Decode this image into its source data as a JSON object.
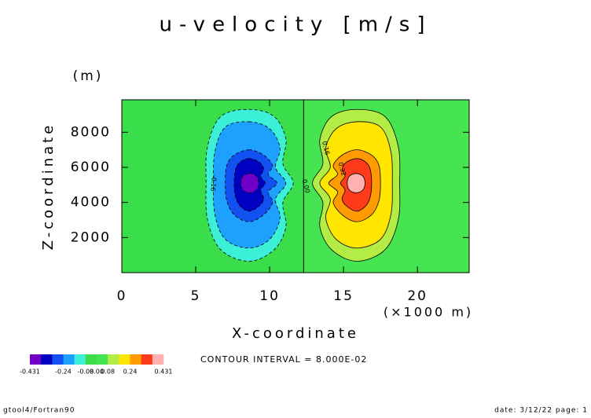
{
  "chart_data": {
    "type": "contour",
    "title": "u-velocity [m/s]",
    "y_unit": "(m)",
    "ylabel": "Z-coordinate",
    "xlabel": "X-coordinate",
    "x_unit": "(×1000 m)",
    "xlim": [
      0,
      23.5
    ],
    "ylim": [
      0,
      9850
    ],
    "xticks": [
      0,
      5,
      10,
      15,
      20
    ],
    "yticks": [
      2000,
      4000,
      6000,
      8000
    ],
    "contour_interval": "CONTOUR INTERVAL = 8.000E-02",
    "colorbar": {
      "levels": [
        -0.431,
        -0.4,
        -0.32,
        -0.24,
        -0.16,
        -0.08,
        0,
        0.08,
        0.16,
        0.24,
        0.32,
        0.4,
        0.431
      ],
      "colors": [
        "#7000c8",
        "#0000c0",
        "#1250f0",
        "#1ea0ff",
        "#3cf0d8",
        "#3ade4a",
        "#46e450",
        "#b4ec46",
        "#ffe600",
        "#ff9a00",
        "#ff3a1a",
        "#ffb0b0"
      ],
      "ticks": [
        -0.431,
        -0.24,
        -0.08,
        {
          "value": 0,
          "label": "0.00"
        },
        0.08,
        0.24,
        0.431
      ]
    },
    "contours": [
      {
        "level": -0.08,
        "x": [
          8.6,
          10.3,
          11.1,
          10.9,
          11.6,
          10.9,
          11.1,
          10.3,
          8.6,
          6.7,
          5.8,
          5.7,
          5.8,
          6.7
        ],
        "z": [
          9300,
          8900,
          7600,
          6200,
          5100,
          4000,
          2600,
          1300,
          650,
          1300,
          3000,
          5100,
          7200,
          8900
        ]
      },
      {
        "level": -0.16,
        "x": [
          8.6,
          10.0,
          10.7,
          10.4,
          11.1,
          10.4,
          10.7,
          10.0,
          8.6,
          7.0,
          6.3,
          6.2,
          6.3,
          7.0
        ],
        "z": [
          8600,
          8200,
          7100,
          6000,
          5100,
          4200,
          3100,
          1900,
          1400,
          1900,
          3300,
          5100,
          6900,
          8300
        ]
      },
      {
        "level": -0.24,
        "x": [
          8.6,
          9.6,
          10.2,
          9.9,
          10.5,
          9.9,
          10.2,
          9.6,
          8.6,
          7.6,
          7.1,
          7.0,
          7.1,
          7.6
        ],
        "z": [
          7000,
          6700,
          6100,
          5600,
          5100,
          4600,
          4000,
          3300,
          2900,
          3300,
          4100,
          5100,
          6100,
          6700
        ]
      },
      {
        "level": -0.32,
        "x": [
          8.6,
          9.3,
          9.6,
          9.4,
          9.7,
          9.4,
          9.6,
          9.3,
          8.6,
          8.0,
          7.7,
          7.6,
          7.7,
          8.0
        ],
        "z": [
          6500,
          6300,
          5900,
          5500,
          5100,
          4700,
          4200,
          3800,
          3500,
          3800,
          4300,
          5100,
          5900,
          6300
        ]
      },
      {
        "level": -0.4,
        "x": [
          8.65,
          9.1,
          9.25,
          9.1,
          8.65,
          8.2,
          8.05,
          8.2
        ],
        "z": [
          5650,
          5500,
          5100,
          4700,
          4550,
          4700,
          5100,
          5500
        ]
      },
      {
        "level": 0.08,
        "x": [
          15.9,
          14.2,
          13.4,
          13.6,
          12.9,
          13.6,
          13.4,
          14.2,
          15.9,
          17.8,
          18.7,
          18.8,
          18.7,
          17.8
        ],
        "z": [
          9300,
          8900,
          7600,
          6200,
          5100,
          4000,
          2600,
          1300,
          650,
          1300,
          3000,
          5100,
          7200,
          8900
        ]
      },
      {
        "level": 0.16,
        "x": [
          15.9,
          14.5,
          13.8,
          14.1,
          13.4,
          14.1,
          13.8,
          14.5,
          15.9,
          17.5,
          18.2,
          18.3,
          18.2,
          17.5
        ],
        "z": [
          8600,
          8200,
          7100,
          6000,
          5100,
          4200,
          3100,
          1900,
          1400,
          1900,
          3300,
          5100,
          6900,
          8300
        ]
      },
      {
        "level": 0.24,
        "x": [
          15.9,
          14.9,
          14.3,
          14.6,
          14.0,
          14.6,
          14.3,
          14.9,
          15.9,
          16.9,
          17.4,
          17.5,
          17.4,
          16.9
        ],
        "z": [
          7000,
          6700,
          6100,
          5600,
          5100,
          4600,
          4000,
          3300,
          2900,
          3300,
          4100,
          5100,
          6100,
          6700
        ]
      },
      {
        "level": 0.32,
        "x": [
          15.9,
          15.2,
          14.9,
          15.1,
          14.8,
          15.1,
          14.9,
          15.2,
          15.9,
          16.5,
          16.8,
          16.9,
          16.8,
          16.5
        ],
        "z": [
          6500,
          6300,
          5900,
          5500,
          5100,
          4700,
          4200,
          3800,
          3500,
          3800,
          4300,
          5100,
          5900,
          6300
        ]
      },
      {
        "level": 0.4,
        "x": [
          15.85,
          16.3,
          16.45,
          16.3,
          15.85,
          15.4,
          15.25,
          15.4
        ],
        "z": [
          5650,
          5500,
          5100,
          4700,
          4550,
          4700,
          5100,
          5500
        ]
      },
      {
        "level": 0,
        "x": [
          12.3,
          12.3
        ],
        "z": [
          0,
          9850
        ]
      }
    ],
    "contour_labels": [
      {
        "text": "0.00",
        "level": 0
      },
      {
        "text": "-0.16",
        "level": -0.16
      },
      {
        "text": "0.16",
        "level": 0.16
      },
      {
        "text": "0.32",
        "level": 0.32
      }
    ],
    "footer_left": "gtool4/Fortran90",
    "footer_right": "date: 3/12/22 page: 1"
  }
}
